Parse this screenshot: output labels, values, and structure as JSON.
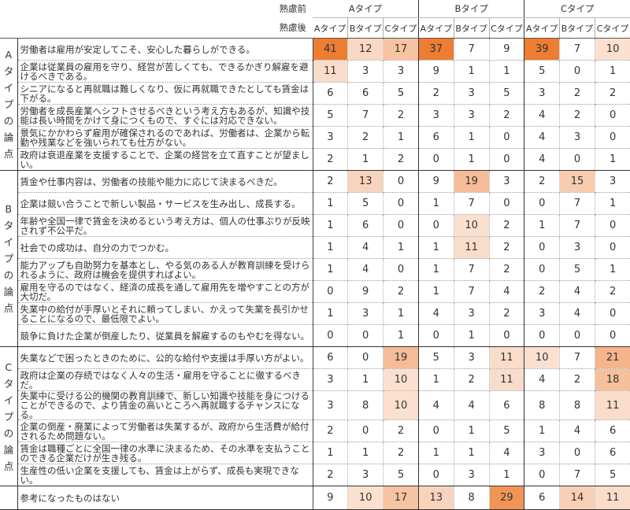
{
  "header": {
    "before_label": "熟慮前",
    "after_label": "熟慮後",
    "before_types": [
      "Aタイプ",
      "Bタイプ",
      "Cタイプ"
    ],
    "after_types": [
      "Aタイプ",
      "Bタイプ",
      "Cタイプ",
      "Aタイプ",
      "Bタイプ",
      "Cタイプ",
      "Aタイプ",
      "Bタイプ",
      "Cタイプ"
    ]
  },
  "heat_colors": {
    "low": "#fbe0d0",
    "high": "#ed7d31"
  },
  "groups": [
    {
      "label": "Aタイプの論点",
      "rows": [
        {
          "text": "労働者は雇用が安定してこそ、安心した暮らしができる。",
          "values": [
            41,
            12,
            17,
            37,
            7,
            9,
            39,
            7,
            10
          ]
        },
        {
          "text": "企業は従業員の雇用を守り、経営が苦しくても、できるかぎり解雇を避けるべきである。",
          "values": [
            11,
            3,
            3,
            9,
            1,
            1,
            5,
            0,
            1
          ]
        },
        {
          "text": "シニアになると再就職は難しくなり、仮に再就職できたとしても賃金は下がる。",
          "values": [
            6,
            6,
            5,
            2,
            3,
            5,
            3,
            2,
            2
          ]
        },
        {
          "text": "労働者を成長産業へシフトさせるべきという考え方もあるが、知識や技能は長い時間をかけて身につくもので、すぐには対応できない。",
          "values": [
            5,
            7,
            2,
            3,
            3,
            2,
            4,
            2,
            0
          ]
        },
        {
          "text": "景気にかかわらず雇用が確保されるのであれば、労働者は、企業から転勤や残業などを強いられても仕方がない。",
          "values": [
            3,
            2,
            1,
            6,
            1,
            0,
            4,
            3,
            0
          ]
        },
        {
          "text": "政府は衰退産業を支援することで、企業の経営を立て直すことが望ましい。",
          "values": [
            2,
            1,
            2,
            0,
            1,
            0,
            4,
            0,
            1
          ]
        }
      ]
    },
    {
      "label": "Bタイプの論点",
      "rows": [
        {
          "text": "賃金や仕事内容は、労働者の技能や能力に応じて決まるべきだ。",
          "values": [
            2,
            13,
            0,
            9,
            19,
            3,
            2,
            15,
            3
          ]
        },
        {
          "text": "企業は競い合うことで新しい製品・サービスを生み出し、成長する。",
          "values": [
            1,
            5,
            0,
            1,
            7,
            0,
            0,
            7,
            1
          ]
        },
        {
          "text": "年齢や全国一律で賃金を決めるという考え方は、個人の仕事ぶりが反映されず不公平だ。",
          "values": [
            1,
            6,
            0,
            0,
            10,
            2,
            1,
            7,
            0
          ]
        },
        {
          "text": "社会での成功は、自分の力でつかむ。",
          "values": [
            1,
            4,
            1,
            1,
            11,
            2,
            0,
            3,
            0
          ]
        },
        {
          "text": "能力アップも自助努力を基本とし、やる気のある人が教育訓練を受けられるように、政府は機会を提供すればよい。",
          "values": [
            1,
            4,
            0,
            1,
            7,
            2,
            0,
            5,
            1
          ]
        },
        {
          "text": "雇用を守るのではなく、経済の成長を通して雇用先を増やすことの方が大切だ。",
          "values": [
            0,
            9,
            2,
            1,
            7,
            4,
            2,
            4,
            2
          ]
        },
        {
          "text": "失業中の給付が手厚いとそれに頼ってしまい、かえって失業を長引かせることになるので、最低限でよい。",
          "values": [
            1,
            3,
            1,
            4,
            3,
            2,
            3,
            4,
            0
          ]
        },
        {
          "text": "競争に負けた企業が倒産したり、従業員を解雇するのもやむを得ない。",
          "values": [
            0,
            0,
            1,
            0,
            1,
            0,
            0,
            0,
            0
          ]
        }
      ]
    },
    {
      "label": "Cタイプの論点",
      "rows": [
        {
          "text": "失業などで困ったときのために、公的な給付や支援は手厚い方がよい。",
          "values": [
            6,
            0,
            19,
            5,
            3,
            11,
            10,
            7,
            21
          ]
        },
        {
          "text": "政府は企業の存続ではなく人々の生活・雇用を守ることに徹するべきだ。",
          "values": [
            3,
            1,
            10,
            1,
            2,
            11,
            4,
            2,
            18
          ]
        },
        {
          "text": "失業中に受ける公的機関の教育訓練で、新しい知識や技能を身につけることができるので、より賃金の高いところへ再就職するチャンスになる。",
          "values": [
            3,
            8,
            10,
            4,
            4,
            6,
            8,
            8,
            11
          ]
        },
        {
          "text": "企業の倒産・廃業によって労働者は失業するが、政府から生活費が給付されるため問題ない。",
          "values": [
            2,
            0,
            2,
            0,
            1,
            5,
            1,
            4,
            6
          ]
        },
        {
          "text": "賃金は職種ごとに全国一律の水準に決まるため、その水準を支払うことのできる企業だけが生き残る。",
          "values": [
            1,
            1,
            2,
            1,
            1,
            4,
            3,
            0,
            6
          ]
        },
        {
          "text": "生産性の低い企業を支援しても、賃金は上がらず、成長も実現できない。",
          "values": [
            2,
            3,
            5,
            0,
            3,
            1,
            0,
            7,
            5
          ]
        }
      ]
    },
    {
      "label": "",
      "rows": [
        {
          "text": "参考になったものはない",
          "values": [
            9,
            10,
            17,
            13,
            8,
            29,
            6,
            14,
            11
          ]
        }
      ]
    }
  ]
}
